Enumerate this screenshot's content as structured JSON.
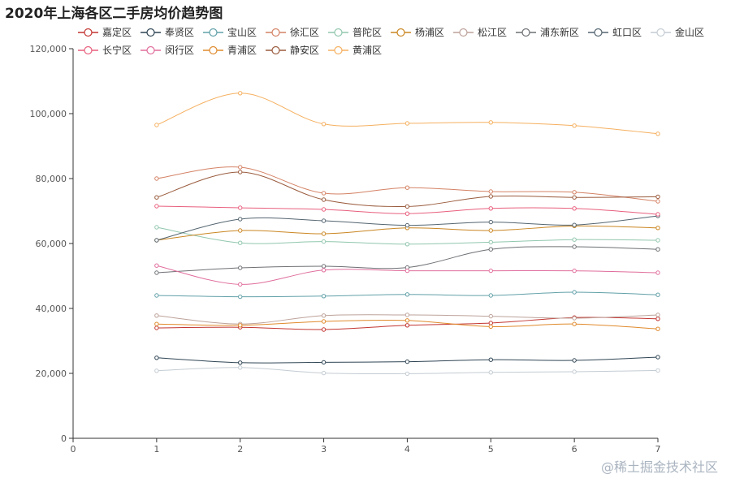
{
  "chart_data": {
    "type": "line",
    "title": "2020年上海各区二手房均价趋势图",
    "xlabel": "",
    "ylabel": "",
    "x": [
      1,
      2,
      3,
      4,
      5,
      6,
      7
    ],
    "xlim": [
      0,
      7
    ],
    "ylim": [
      0,
      120000
    ],
    "x_ticks": [
      "0",
      "1",
      "2",
      "3",
      "4",
      "5",
      "6",
      "7"
    ],
    "y_ticks": [
      "0",
      "20,000",
      "40,000",
      "60,000",
      "80,000",
      "100,000",
      "120,000"
    ],
    "legend_position": "top",
    "grid": false,
    "series": [
      {
        "name": "嘉定区",
        "color": "#c23531",
        "values": [
          34000,
          34200,
          33500,
          34800,
          35500,
          37200,
          36800
        ]
      },
      {
        "name": "奉贤区",
        "color": "#2f4554",
        "values": [
          24800,
          23300,
          23400,
          23600,
          24200,
          24000,
          25000
        ]
      },
      {
        "name": "宝山区",
        "color": "#61a0a8",
        "values": [
          44000,
          43600,
          43800,
          44300,
          44000,
          45000,
          44200
        ]
      },
      {
        "name": "徐汇区",
        "color": "#d48265",
        "values": [
          80000,
          83500,
          75500,
          77200,
          76000,
          75800,
          73000
        ]
      },
      {
        "name": "普陀区",
        "color": "#91c7ae",
        "values": [
          65000,
          60200,
          60600,
          59800,
          60400,
          61200,
          61000
        ]
      },
      {
        "name": "杨浦区",
        "color": "#ca8622",
        "values": [
          61000,
          64000,
          63000,
          64800,
          64000,
          65400,
          64800
        ]
      },
      {
        "name": "松江区",
        "color": "#bda29a",
        "values": [
          37800,
          35200,
          37800,
          38000,
          37600,
          37000,
          38000
        ]
      },
      {
        "name": "浦东新区",
        "color": "#6e7074",
        "values": [
          51000,
          52500,
          53000,
          52600,
          58200,
          59000,
          58200
        ]
      },
      {
        "name": "虹口区",
        "color": "#546570",
        "values": [
          61000,
          67500,
          67000,
          65600,
          66600,
          65700,
          68500
        ]
      },
      {
        "name": "金山区",
        "color": "#c4ccd3",
        "values": [
          20800,
          21800,
          20100,
          19900,
          20300,
          20500,
          20900
        ]
      },
      {
        "name": "长宁区",
        "color": "#e85f7d",
        "values": [
          71500,
          71000,
          70500,
          69200,
          70800,
          70800,
          69000
        ]
      },
      {
        "name": "闵行区",
        "color": "#e06d9c",
        "values": [
          53200,
          47400,
          51800,
          51600,
          51600,
          51600,
          51000
        ]
      },
      {
        "name": "青浦区",
        "color": "#e08a2c",
        "values": [
          35200,
          34800,
          36000,
          36300,
          34400,
          35200,
          33700
        ]
      },
      {
        "name": "静安区",
        "color": "#9a5b3d",
        "values": [
          74200,
          82000,
          73500,
          71400,
          74500,
          74200,
          74400
        ]
      },
      {
        "name": "黄浦区",
        "color": "#f5b060",
        "values": [
          96500,
          106300,
          96800,
          97000,
          97300,
          96300,
          93800
        ]
      }
    ]
  },
  "watermark": "@稀土掘金技术社区"
}
